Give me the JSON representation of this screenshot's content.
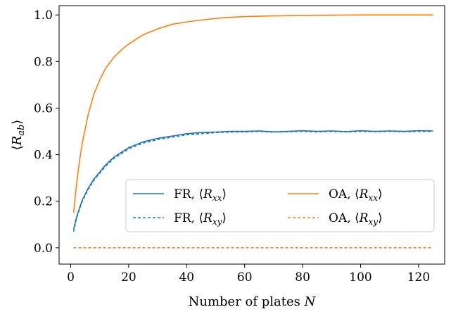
{
  "chart_data": {
    "type": "line",
    "title": "",
    "xlabel": {
      "text": "Number of plates ",
      "var": "N"
    },
    "ylabel": {
      "open": "⟨",
      "var": "R",
      "sub": "ab",
      "close": "⟩"
    },
    "xlim": [
      -4,
      129
    ],
    "ylim": [
      -0.07,
      1.04
    ],
    "xticks": [
      0,
      20,
      40,
      60,
      80,
      100,
      120
    ],
    "yticks": [
      0.0,
      0.2,
      0.4,
      0.6,
      0.8,
      1.0
    ],
    "xtick_labels": [
      "0",
      "20",
      "40",
      "60",
      "80",
      "100",
      "120"
    ],
    "ytick_labels": [
      "0.0",
      "0.2",
      "0.4",
      "0.6",
      "0.8",
      "1.0"
    ],
    "grid": false,
    "legend_position": "lower-right",
    "colors": {
      "FR": "#1f77b4",
      "OA": "#ff7f0e"
    },
    "series": [
      {
        "id": "fr-xx",
        "name": {
          "prefix": "FR, ⟨",
          "var": "R",
          "sub": "xx",
          "suffix": "⟩"
        },
        "color": "#1f77b4",
        "dash": "solid",
        "x": [
          1,
          2,
          3,
          4,
          5,
          6,
          8,
          10,
          12,
          15,
          20,
          25,
          30,
          35,
          40,
          45,
          50,
          55,
          60,
          65,
          70,
          75,
          80,
          85,
          90,
          95,
          100,
          105,
          110,
          115,
          120,
          125
        ],
        "y": [
          0.08,
          0.13,
          0.17,
          0.205,
          0.23,
          0.255,
          0.295,
          0.325,
          0.355,
          0.39,
          0.43,
          0.455,
          0.47,
          0.48,
          0.49,
          0.495,
          0.497,
          0.5,
          0.5,
          0.502,
          0.498,
          0.5,
          0.503,
          0.5,
          0.502,
          0.499,
          0.503,
          0.5,
          0.502,
          0.5,
          0.503,
          0.502
        ]
      },
      {
        "id": "fr-xy",
        "name": {
          "prefix": "FR, ⟨",
          "var": "R",
          "sub": "xy",
          "suffix": "⟩"
        },
        "color": "#1f77b4",
        "dash": "dotted",
        "x": [
          1,
          2,
          3,
          4,
          5,
          6,
          8,
          10,
          12,
          15,
          20,
          25,
          30,
          35,
          40,
          45,
          50,
          55,
          60,
          65,
          70,
          75,
          80,
          85,
          90,
          95,
          100,
          105,
          110,
          115,
          120,
          125
        ],
        "y": [
          0.07,
          0.125,
          0.165,
          0.2,
          0.225,
          0.25,
          0.29,
          0.32,
          0.35,
          0.385,
          0.425,
          0.45,
          0.465,
          0.475,
          0.485,
          0.49,
          0.495,
          0.497,
          0.498,
          0.5,
          0.497,
          0.499,
          0.5,
          0.498,
          0.5,
          0.498,
          0.5,
          0.499,
          0.5,
          0.499,
          0.5,
          0.5
        ]
      },
      {
        "id": "oa-xx",
        "name": {
          "prefix": "OA, ⟨",
          "var": "R",
          "sub": "xx",
          "suffix": "⟩"
        },
        "color": "#ff7f0e",
        "dash": "solid",
        "x": [
          1,
          2,
          3,
          4,
          5,
          6,
          8,
          10,
          12,
          15,
          18,
          20,
          25,
          30,
          35,
          40,
          45,
          50,
          55,
          60,
          70,
          80,
          90,
          100,
          110,
          120,
          125
        ],
        "y": [
          0.15,
          0.27,
          0.37,
          0.45,
          0.51,
          0.57,
          0.66,
          0.72,
          0.77,
          0.82,
          0.855,
          0.875,
          0.915,
          0.94,
          0.96,
          0.97,
          0.978,
          0.985,
          0.99,
          0.993,
          0.996,
          0.998,
          0.999,
          1.0,
          1.0,
          1.0,
          1.0
        ]
      },
      {
        "id": "oa-xy",
        "name": {
          "prefix": "OA, ⟨",
          "var": "R",
          "sub": "xy",
          "suffix": "⟩"
        },
        "color": "#ff7f0e",
        "dash": "dotted",
        "x": [
          1,
          125
        ],
        "y": [
          0.0,
          0.0
        ]
      }
    ]
  }
}
